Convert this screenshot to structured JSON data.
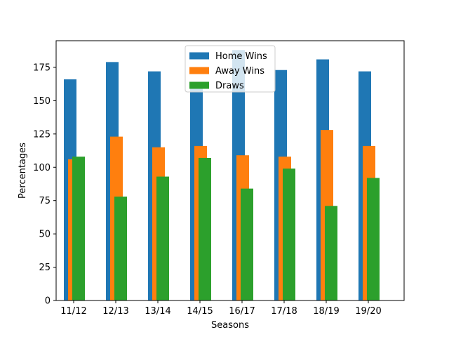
{
  "chart_data": {
    "type": "bar",
    "categories": [
      "11/12",
      "12/13",
      "13/14",
      "14/15",
      "16/17",
      "17/18",
      "18/19",
      "19/20"
    ],
    "series": [
      {
        "name": "Home Wins",
        "color": "#1f77b4",
        "values": [
          166,
          179,
          172,
          159,
          188,
          173,
          181,
          172
        ]
      },
      {
        "name": "Away Wins",
        "color": "#ff7f0e",
        "values": [
          106,
          123,
          115,
          116,
          109,
          108,
          128,
          116
        ]
      },
      {
        "name": "Draws",
        "color": "#2ca02c",
        "values": [
          108,
          78,
          93,
          107,
          84,
          99,
          71,
          92
        ]
      }
    ],
    "xlabel": "Seasons",
    "ylabel": "Percentages",
    "ylim": [
      0,
      195
    ],
    "yticks": [
      0,
      25,
      50,
      75,
      100,
      125,
      150,
      175
    ],
    "grid": false,
    "legend_position": "top-center"
  }
}
